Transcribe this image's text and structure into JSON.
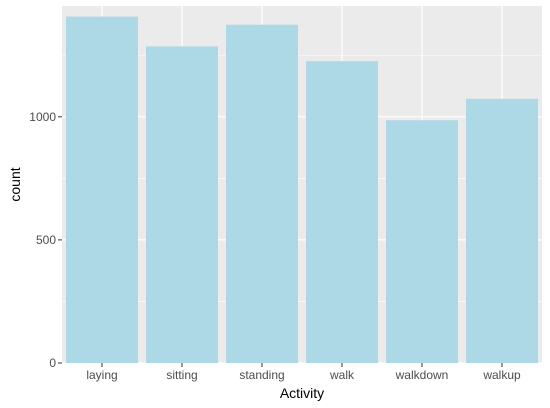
{
  "chart_data": {
    "type": "bar",
    "title": "",
    "xlabel": "Activity",
    "ylabel": "count",
    "categories": [
      "laying",
      "sitting",
      "standing",
      "walk",
      "walkdown",
      "walkup"
    ],
    "values": [
      1407,
      1286,
      1374,
      1226,
      986,
      1073
    ],
    "ylim": [
      0,
      1450
    ],
    "yticks": [
      0,
      500,
      1000
    ],
    "ytick_labels": [
      "0",
      "500",
      "1000"
    ],
    "grid": true,
    "legend": "none",
    "bar_color": "#add8e6",
    "panel_background": "#ebebeb",
    "grid_color": "#ffffff"
  }
}
